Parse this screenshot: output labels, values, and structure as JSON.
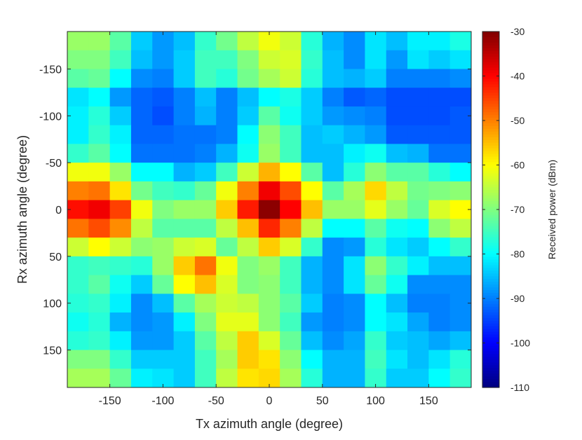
{
  "chart_data": {
    "type": "heatmap",
    "title": "",
    "xlabel": "Tx azimuth angle (degree)",
    "ylabel": "Rx azimuth angle (degree)",
    "colorbar_label": "Received power (dBm)",
    "colormap": "jet",
    "clim": [
      -110,
      -30
    ],
    "colorbar_ticks": [
      -30,
      -40,
      -50,
      -60,
      -70,
      -80,
      -90,
      -100,
      -110
    ],
    "xlim": [
      -190,
      190
    ],
    "ylim": [
      -190,
      190
    ],
    "y_direction": "reversed",
    "xticks": [
      -150,
      -100,
      -50,
      0,
      50,
      100,
      150
    ],
    "yticks": [
      -150,
      -100,
      -50,
      0,
      50,
      100,
      150
    ],
    "x": [
      -180,
      -160,
      -140,
      -120,
      -100,
      -80,
      -60,
      -40,
      -20,
      0,
      20,
      40,
      60,
      80,
      100,
      120,
      140,
      160,
      180
    ],
    "y": [
      -180,
      -160,
      -140,
      -120,
      -100,
      -80,
      -60,
      -40,
      -20,
      0,
      20,
      40,
      60,
      80,
      100,
      120,
      140,
      160,
      180
    ],
    "values": [
      [
        -68,
        -68,
        -73,
        -84,
        -88,
        -85,
        -76,
        -71,
        -65,
        -61,
        -64,
        -77,
        -86,
        -89,
        -82,
        -85,
        -81,
        -81,
        -78
      ],
      [
        -70,
        -70,
        -75,
        -85,
        -88,
        -84,
        -75,
        -75,
        -70,
        -64,
        -63,
        -76,
        -85,
        -89,
        -82,
        -88,
        -82,
        -84,
        -82
      ],
      [
        -73,
        -72,
        -80,
        -89,
        -90,
        -84,
        -75,
        -77,
        -71,
        -67,
        -64,
        -77,
        -85,
        -86,
        -84,
        -90,
        -90,
        -90,
        -89
      ],
      [
        -82,
        -80,
        -88,
        -92,
        -93,
        -90,
        -85,
        -90,
        -85,
        -80,
        -78,
        -84,
        -90,
        -93,
        -92,
        -94,
        -94,
        -94,
        -94
      ],
      [
        -81,
        -77,
        -84,
        -92,
        -94,
        -90,
        -86,
        -90,
        -84,
        -73,
        -79,
        -84,
        -88,
        -89,
        -90,
        -94,
        -94,
        -94,
        -93
      ],
      [
        -81,
        -76,
        -81,
        -92,
        -92,
        -91,
        -91,
        -90,
        -80,
        -69,
        -75,
        -85,
        -84,
        -86,
        -88,
        -93,
        -93,
        -93,
        -93
      ],
      [
        -76,
        -73,
        -80,
        -91,
        -91,
        -91,
        -90,
        -86,
        -79,
        -68,
        -75,
        -85,
        -85,
        -81,
        -79,
        -85,
        -86,
        -91,
        -91
      ],
      [
        -61,
        -61,
        -68,
        -80,
        -80,
        -86,
        -84,
        -75,
        -64,
        -54,
        -60,
        -73,
        -85,
        -77,
        -69,
        -73,
        -73,
        -77,
        -80
      ],
      [
        -50,
        -49,
        -58,
        -71,
        -75,
        -76,
        -72,
        -61,
        -50,
        -39,
        -46,
        -60,
        -73,
        -67,
        -57,
        -65,
        -71,
        -70,
        -69
      ],
      [
        -41,
        -39,
        -45,
        -61,
        -70,
        -68,
        -68,
        -56,
        -42,
        -31,
        -40,
        -55,
        -68,
        -68,
        -62,
        -68,
        -72,
        -63,
        -60
      ],
      [
        -49,
        -46,
        -51,
        -65,
        -73,
        -73,
        -73,
        -65,
        -55,
        -43,
        -50,
        -65,
        -80,
        -80,
        -73,
        -79,
        -80,
        -69,
        -65
      ],
      [
        -64,
        -60,
        -64,
        -69,
        -68,
        -64,
        -63,
        -72,
        -65,
        -56,
        -63,
        -76,
        -89,
        -88,
        -77,
        -82,
        -84,
        -80,
        -76
      ],
      [
        -76,
        -75,
        -76,
        -77,
        -68,
        -56,
        -49,
        -61,
        -70,
        -68,
        -75,
        -86,
        -89,
        -82,
        -69,
        -76,
        -81,
        -85,
        -85
      ],
      [
        -76,
        -73,
        -79,
        -84,
        -72,
        -60,
        -55,
        -63,
        -70,
        -69,
        -75,
        -86,
        -89,
        -82,
        -72,
        -79,
        -89,
        -89,
        -89
      ],
      [
        -77,
        -76,
        -81,
        -89,
        -85,
        -73,
        -67,
        -64,
        -65,
        -69,
        -73,
        -84,
        -90,
        -89,
        -80,
        -85,
        -90,
        -90,
        -89
      ],
      [
        -79,
        -77,
        -86,
        -89,
        -88,
        -81,
        -70,
        -62,
        -62,
        -69,
        -75,
        -88,
        -90,
        -89,
        -80,
        -82,
        -87,
        -90,
        -89
      ],
      [
        -77,
        -76,
        -81,
        -88,
        -88,
        -84,
        -73,
        -65,
        -56,
        -63,
        -72,
        -85,
        -89,
        -87,
        -76,
        -84,
        -85,
        -87,
        -85
      ],
      [
        -70,
        -70,
        -76,
        -84,
        -84,
        -84,
        -75,
        -67,
        -56,
        -58,
        -69,
        -80,
        -86,
        -86,
        -75,
        -82,
        -85,
        -82,
        -77
      ],
      [
        -67,
        -67,
        -72,
        -81,
        -82,
        -84,
        -75,
        -65,
        -58,
        -57,
        -67,
        -77,
        -86,
        -86,
        -76,
        -84,
        -84,
        -80,
        -76
      ]
    ]
  }
}
